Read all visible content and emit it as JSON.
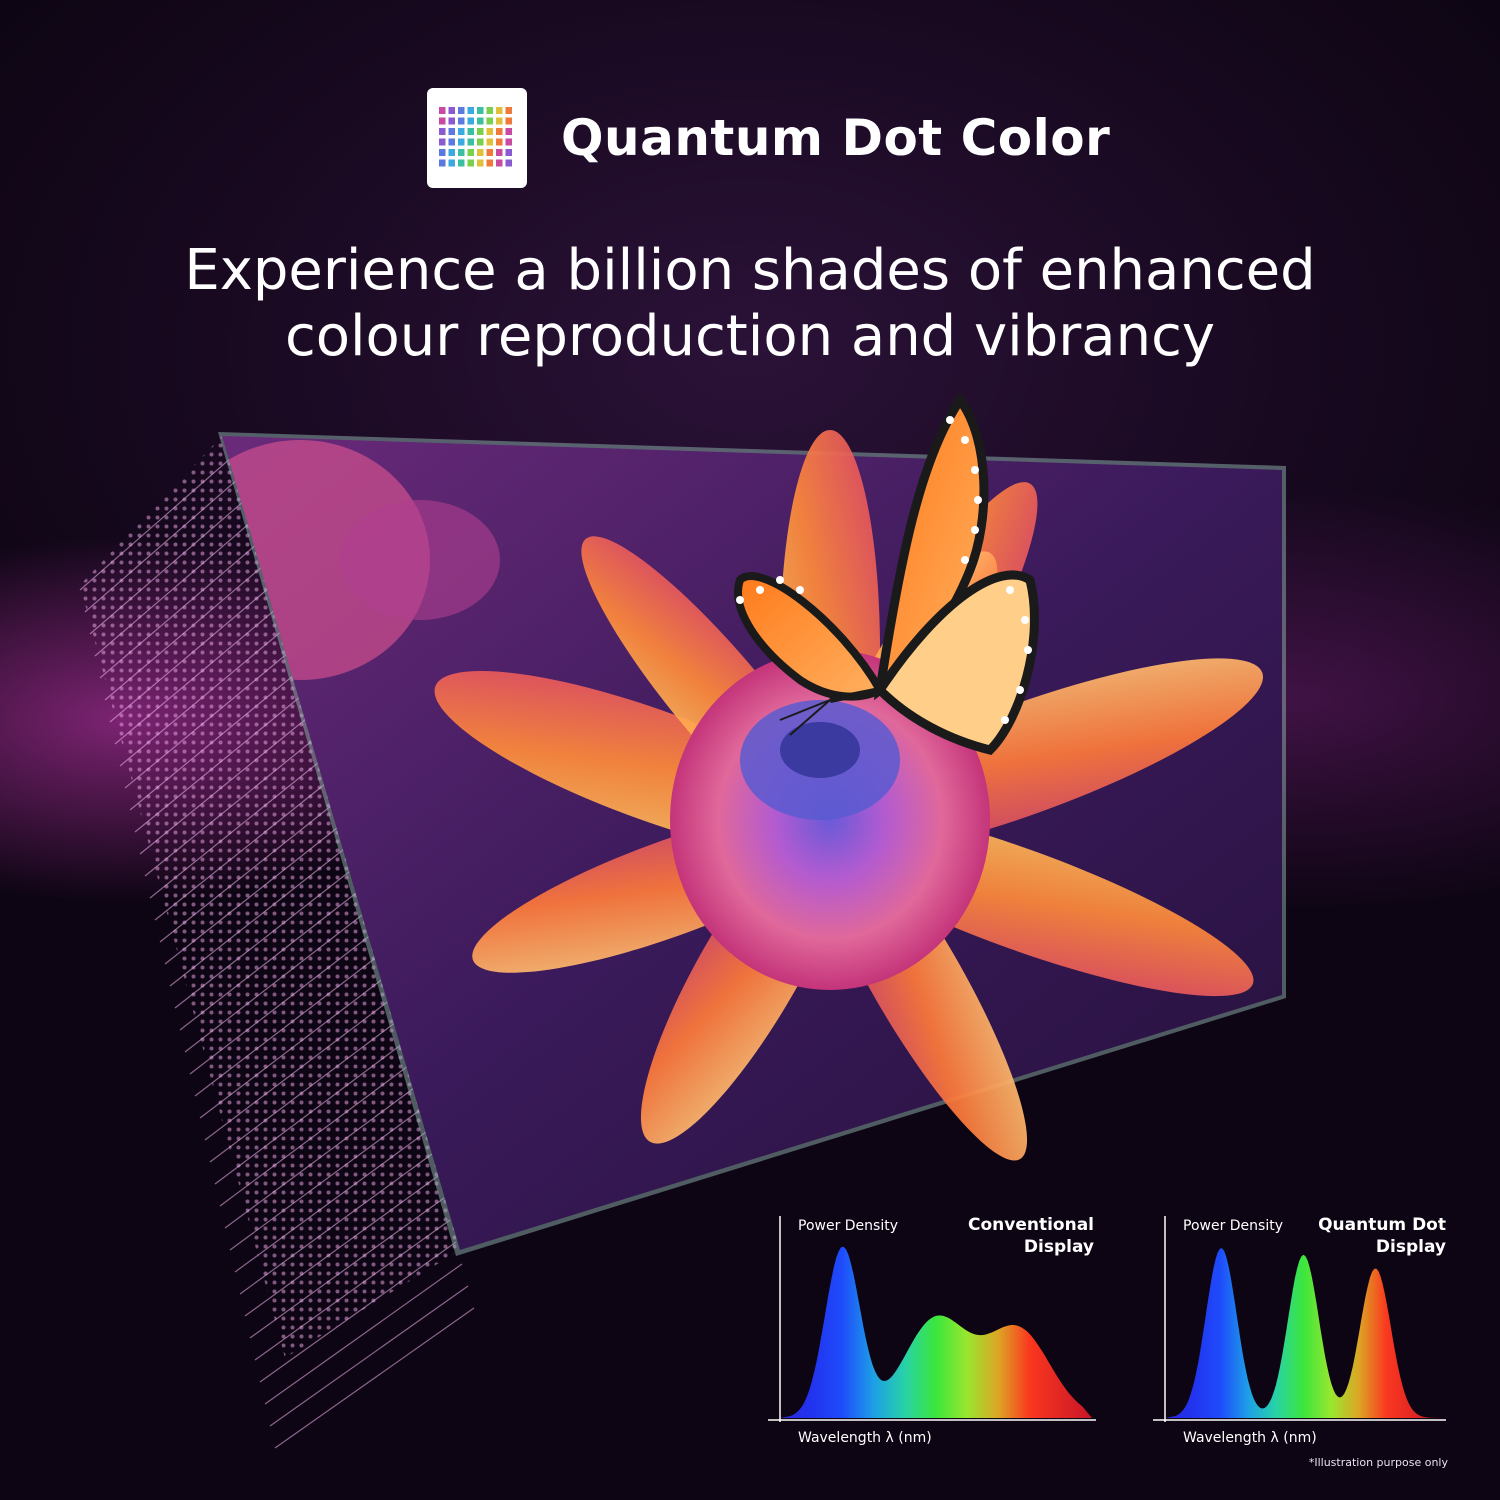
{
  "header": {
    "title": "Quantum Dot Color",
    "logo_icon": "quantum-dot-grid-icon"
  },
  "headline": {
    "line1": "Experience a billion shades of enhanced",
    "line2": "colour reproduction and vibrancy"
  },
  "colors": {
    "background": "#1a0a24",
    "accent_magenta": "#d63cbe",
    "text": "#ffffff"
  },
  "charts": [
    {
      "title_line1": "Conventional",
      "title_line2": "Display",
      "ylabel": "Power Density",
      "xlabel": "Wavelength λ (nm)"
    },
    {
      "title_line1": "Quantum Dot",
      "title_line2": "Display",
      "ylabel": "Power Density",
      "xlabel": "Wavelength λ (nm)"
    }
  ],
  "footnote": "*Illustration purpose only",
  "chart_data": [
    {
      "type": "area",
      "title": "Conventional Display",
      "ylabel": "Power Density",
      "xlabel": "Wavelength λ (nm)",
      "series": [
        {
          "peak": "blue",
          "height": 1.0,
          "width": "narrow"
        },
        {
          "peak": "green",
          "height": 0.58,
          "width": "broad"
        },
        {
          "peak": "red",
          "height": 0.52,
          "width": "broad"
        }
      ]
    },
    {
      "type": "area",
      "title": "Quantum Dot Display",
      "ylabel": "Power Density",
      "xlabel": "Wavelength λ (nm)",
      "series": [
        {
          "peak": "blue",
          "height": 1.0,
          "width": "narrow"
        },
        {
          "peak": "green",
          "height": 0.96,
          "width": "narrow"
        },
        {
          "peak": "red",
          "height": 0.88,
          "width": "narrow"
        }
      ]
    }
  ]
}
